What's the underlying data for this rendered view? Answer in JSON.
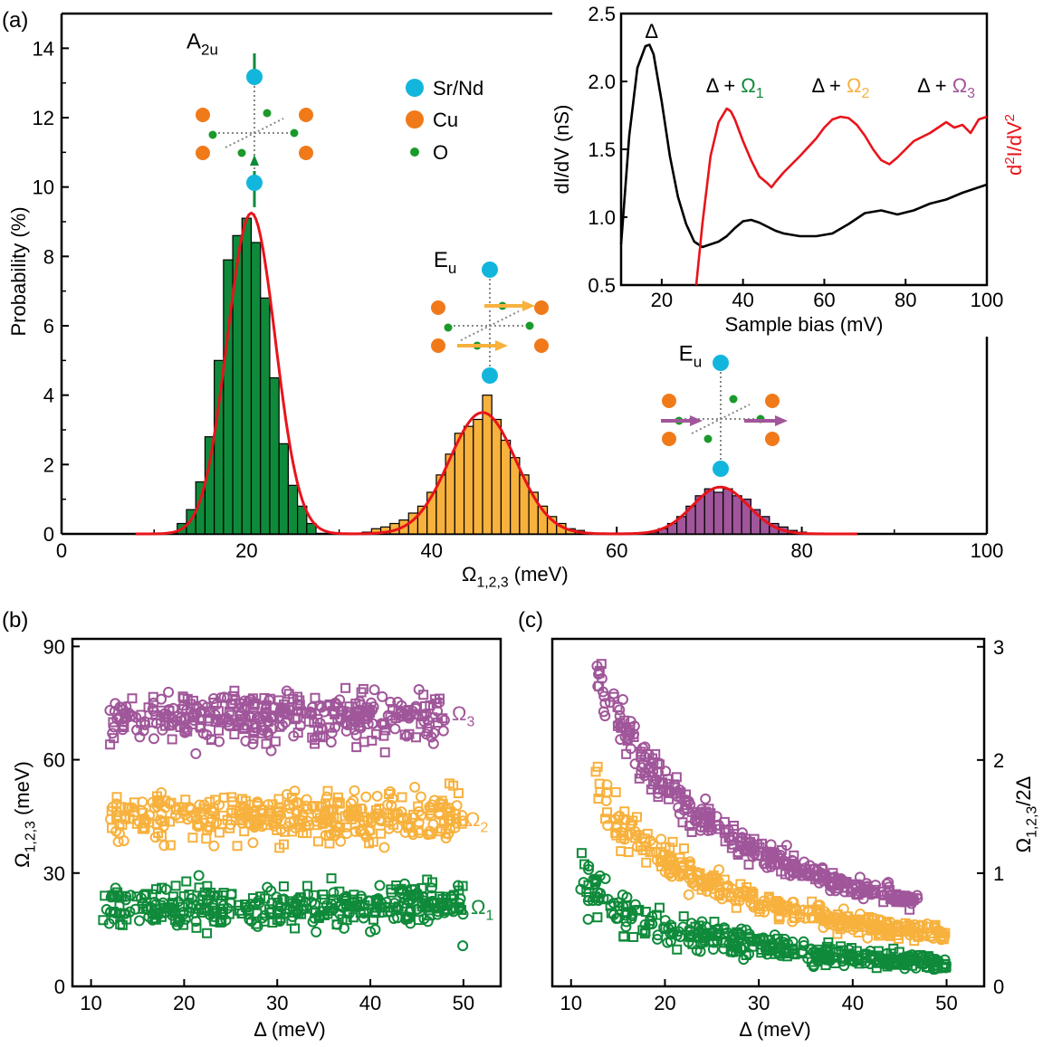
{
  "colors": {
    "green": "#0f8a3a",
    "orange": "#f7b13d",
    "purple": "#a0569a",
    "red": "#e8141b",
    "black": "#000000",
    "sr": "#12b6dc",
    "cu": "#f07a1a",
    "o": "#1a9a2a"
  },
  "chart_data": [
    {
      "id": "a",
      "panel_label": "(a)",
      "type": "bar",
      "xlabel": "Ω1,2,3 (meV)",
      "ylabel": "Probability (%)",
      "xlim": [
        0,
        100
      ],
      "ylim": [
        0,
        15
      ],
      "xticks": [
        0,
        20,
        40,
        60,
        80,
        100
      ],
      "yticks": [
        0,
        2,
        4,
        6,
        8,
        10,
        12,
        14
      ],
      "bin_width": 1,
      "series": [
        {
          "name": "Ω1",
          "color": "green",
          "x": [
            13,
            14,
            15,
            16,
            17,
            18,
            19,
            20,
            21,
            22,
            23,
            24,
            25,
            26,
            27
          ],
          "values": [
            0.3,
            0.7,
            1.5,
            2.8,
            5.0,
            7.9,
            8.6,
            9.1,
            8.4,
            6.8,
            4.5,
            2.6,
            1.4,
            0.8,
            0.3
          ]
        },
        {
          "name": "Ω2",
          "color": "orange",
          "x": [
            33,
            34,
            35,
            36,
            37,
            38,
            39,
            40,
            41,
            42,
            43,
            44,
            45,
            46,
            47,
            48,
            49,
            50,
            51,
            52,
            53,
            54,
            55,
            56
          ],
          "values": [
            0.05,
            0.15,
            0.2,
            0.3,
            0.4,
            0.6,
            0.8,
            1.2,
            1.7,
            2.3,
            2.9,
            3.1,
            3.3,
            4.0,
            3.3,
            2.7,
            2.2,
            1.7,
            1.2,
            0.8,
            0.5,
            0.3,
            0.15,
            0.1
          ]
        },
        {
          "name": "Ω3",
          "color": "purple",
          "x": [
            64,
            65,
            66,
            67,
            68,
            69,
            70,
            71,
            72,
            73,
            74,
            75,
            76,
            77,
            78,
            79,
            80
          ],
          "values": [
            0.05,
            0.15,
            0.3,
            0.5,
            0.8,
            1.1,
            1.3,
            1.2,
            1.3,
            1.1,
            1.0,
            0.7,
            0.5,
            0.3,
            0.2,
            0.1,
            0.05
          ]
        }
      ],
      "fits": [
        {
          "color": "red",
          "peaks": [
            {
              "center": 20.5,
              "amp": 9.25,
              "sigma": 2.6
            },
            {
              "center": 45.5,
              "amp": 3.5,
              "sigma": 3.6
            },
            {
              "center": 71.2,
              "amp": 1.35,
              "sigma": 3.0
            }
          ],
          "xrange": [
            8,
            86
          ]
        }
      ],
      "annotations": [
        {
          "text": "A",
          "sub": "2u",
          "x": 13.5,
          "y": 14.0
        },
        {
          "text": "E",
          "sub": "u",
          "x": 40.2,
          "y": 7.7
        },
        {
          "text": "E",
          "sub": "u",
          "x": 66.7,
          "y": 5.0
        }
      ],
      "legend": {
        "position": "top-left-of-center",
        "items": [
          {
            "label": "Sr/Nd",
            "color": "sr"
          },
          {
            "label": "Cu",
            "color": "cu"
          },
          {
            "label": "O",
            "color": "o"
          }
        ]
      }
    },
    {
      "id": "inset",
      "type": "line",
      "xlabel": "Sample bias (mV)",
      "ylabel": "dI/dV (nS)",
      "ylabel_right": "d²I/dV²",
      "xlim": [
        10,
        100
      ],
      "ylim": [
        0.5,
        2.5
      ],
      "xticks": [
        20,
        40,
        60,
        80,
        100
      ],
      "yticks": [
        0.5,
        1.0,
        1.5,
        2.0,
        2.5
      ],
      "series": [
        {
          "name": "dI/dV",
          "color": "black",
          "x": [
            10,
            12,
            14,
            16,
            17,
            18,
            20,
            22,
            24,
            26,
            28,
            30,
            32,
            34,
            36,
            38,
            40,
            42,
            44,
            46,
            48,
            50,
            54,
            58,
            62,
            66,
            70,
            74,
            78,
            82,
            86,
            90,
            94,
            98,
            100
          ],
          "y": [
            0.8,
            1.6,
            2.1,
            2.26,
            2.27,
            2.2,
            1.85,
            1.45,
            1.15,
            0.95,
            0.82,
            0.78,
            0.8,
            0.82,
            0.86,
            0.92,
            0.97,
            0.98,
            0.96,
            0.93,
            0.9,
            0.88,
            0.86,
            0.86,
            0.88,
            0.95,
            1.03,
            1.05,
            1.02,
            1.05,
            1.1,
            1.13,
            1.18,
            1.22,
            1.24
          ]
        },
        {
          "name": "d²I/dV²",
          "color": "red",
          "x": [
            28.5,
            30,
            32,
            34,
            36,
            37,
            38,
            40,
            42,
            44,
            46,
            47,
            48,
            50,
            54,
            58,
            60,
            62,
            64,
            66,
            68,
            70,
            72,
            74,
            76,
            78,
            82,
            86,
            90,
            92,
            94,
            96,
            98,
            100
          ],
          "y": [
            0.5,
            0.95,
            1.45,
            1.7,
            1.8,
            1.78,
            1.72,
            1.56,
            1.42,
            1.3,
            1.25,
            1.22,
            1.26,
            1.33,
            1.45,
            1.58,
            1.66,
            1.72,
            1.74,
            1.73,
            1.68,
            1.6,
            1.5,
            1.42,
            1.39,
            1.44,
            1.56,
            1.62,
            1.7,
            1.66,
            1.68,
            1.62,
            1.72,
            1.74
          ]
        }
      ],
      "labels": [
        {
          "text": "Δ",
          "x": 17.5,
          "y": 2.32,
          "color": "black"
        },
        {
          "text": "Δ + ",
          "omega": "Ω1",
          "x": 38,
          "y": 1.92,
          "color": "green"
        },
        {
          "text": "Δ + ",
          "omega": "Ω2",
          "x": 64,
          "y": 1.92,
          "color": "orange"
        },
        {
          "text": "Δ + ",
          "omega": "Ω3",
          "x": 90,
          "y": 1.92,
          "color": "purple"
        }
      ]
    },
    {
      "id": "b",
      "panel_label": "(b)",
      "type": "scatter",
      "xlabel": "Δ (meV)",
      "ylabel": "Ω1,2,3 (meV)",
      "xlim": [
        8,
        54
      ],
      "ylim": [
        0,
        92
      ],
      "xticks": [
        10,
        20,
        30,
        40,
        50
      ],
      "yticks": [
        0,
        30,
        60,
        90
      ],
      "series": [
        {
          "name": "Ω3",
          "color": "purple",
          "center": 71,
          "spread": 3.2,
          "xrange": [
            12,
            48
          ]
        },
        {
          "name": "Ω2",
          "color": "orange",
          "center": 45,
          "spread": 3.2,
          "xrange": [
            12,
            50
          ]
        },
        {
          "name": "Ω1",
          "color": "green",
          "center": 21,
          "spread": 2.8,
          "xrange": [
            11,
            50
          ]
        }
      ]
    },
    {
      "id": "c",
      "panel_label": "(c)",
      "type": "scatter",
      "xlabel": "Δ (meV)",
      "ylabel": "Ω1,2,3/2Δ",
      "xlim": [
        8,
        54
      ],
      "ylim": [
        0,
        3.07
      ],
      "xticks": [
        10,
        20,
        30,
        40,
        50
      ],
      "yticks": [
        0,
        1,
        2,
        3
      ],
      "series": [
        {
          "name": "Ω3",
          "color": "purple",
          "omega": 71,
          "xrange": [
            12.5,
            47
          ]
        },
        {
          "name": "Ω2",
          "color": "orange",
          "omega": 45,
          "xrange": [
            12.5,
            50
          ]
        },
        {
          "name": "Ω1",
          "color": "green",
          "omega": 21,
          "xrange": [
            11,
            50
          ]
        }
      ]
    }
  ]
}
